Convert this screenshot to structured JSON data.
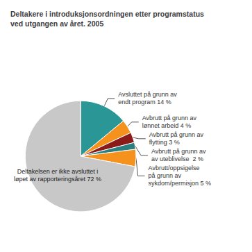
{
  "chart_data": {
    "type": "pie",
    "title": "Deltakere i introduksjonsordningen etter programstatus\nved utgangen av året. 2005",
    "categories": [
      "Avsluttet på grunn av\nendt program 14 %",
      "Avbrutt på grunn av\nlønnet arbeid 4 %",
      "Avbrutt på grunn av\nflytting 3 %",
      "Avbrutt på grunn av\nav uteblivelse  2 %",
      "Avbrutt/oppsigelse\npå grunn av\nsykdom/permisjon 5 %",
      "Deltakelsen er ikke avsluttet i\nløpet av rapporteringsåret 72 %"
    ],
    "values": [
      14,
      4,
      3,
      2,
      5,
      72
    ],
    "colors": [
      "#2A9696",
      "#F5921E",
      "#8B1A1A",
      "#2A8080",
      "#F5921E",
      "#C8C8C8"
    ]
  }
}
